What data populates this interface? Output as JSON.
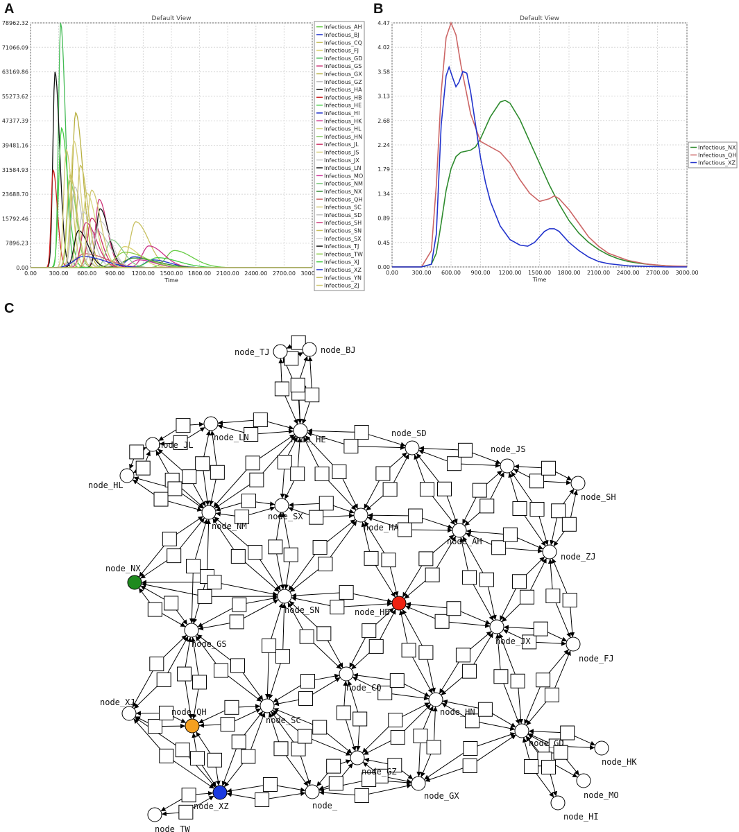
{
  "panels": {
    "a": "A",
    "b": "B",
    "c": "C"
  },
  "chart_data": [
    {
      "type": "line",
      "title": "Default View",
      "xlabel": "Time",
      "ylabel": "",
      "xlim": [
        0,
        3000
      ],
      "ylim": [
        0,
        78962.32
      ],
      "xticks": [
        "0.00",
        "300.00",
        "600.00",
        "900.00",
        "1200.00",
        "1500.00",
        "1800.00",
        "2100.00",
        "2400.00",
        "2700.00",
        "3000.00"
      ],
      "yticks": [
        "0.00",
        "7896.23",
        "15792.46",
        "23688.70",
        "31584.93",
        "39481.16",
        "47377.39",
        "55273.62",
        "63169.86",
        "71066.09",
        "78962.32"
      ],
      "grid": true,
      "legend": "right",
      "series": [
        {
          "name": "Infectious_AH",
          "color": "#66cc44",
          "peak_t": 1530,
          "peak": 5500,
          "width": 170
        },
        {
          "name": "Infectious_BJ",
          "color": "#2233cc",
          "peak_t": 1100,
          "peak": 3500,
          "width": 160
        },
        {
          "name": "Infectious_CQ",
          "color": "#c8c060",
          "peak_t": 1120,
          "peak": 14800,
          "width": 120
        },
        {
          "name": "Infectious_FJ",
          "color": "#d8d070",
          "peak_t": 1000,
          "peak": 6800,
          "width": 140
        },
        {
          "name": "Infectious_GD",
          "color": "#44bb55",
          "peak_t": 320,
          "peak": 78962.32,
          "width": 45
        },
        {
          "name": "Infectious_GS",
          "color": "#cc3377",
          "peak_t": 730,
          "peak": 22000,
          "width": 75
        },
        {
          "name": "Infectious_GX",
          "color": "#b8b040",
          "peak_t": 480,
          "peak": 50000,
          "width": 70
        },
        {
          "name": "Infectious_GZ",
          "color": "#c0c0c0",
          "peak_t": 700,
          "peak": 12000,
          "width": 120
        },
        {
          "name": "Infectious_HA",
          "color": "#111111",
          "peak_t": 260,
          "peak": 63169.86,
          "width": 45
        },
        {
          "name": "Infectious_HB",
          "color": "#cc2222",
          "peak_t": 240,
          "peak": 31584.93,
          "width": 40
        },
        {
          "name": "Infectious_HE",
          "color": "#44cc44",
          "peak_t": 330,
          "peak": 45000,
          "width": 60
        },
        {
          "name": "Infectious_HI",
          "color": "#2233cc",
          "peak_t": 1300,
          "peak": 2500,
          "width": 160
        },
        {
          "name": "Infectious_HK",
          "color": "#cc3388",
          "peak_t": 1260,
          "peak": 7000,
          "width": 140
        },
        {
          "name": "Infectious_HL",
          "color": "#d6d680",
          "peak_t": 600,
          "peak": 24000,
          "width": 85
        },
        {
          "name": "Infectious_HN",
          "color": "#88cc66",
          "peak_t": 420,
          "peak": 28000,
          "width": 60
        },
        {
          "name": "Infectious_JL",
          "color": "#cc3366",
          "peak_t": 650,
          "peak": 16000,
          "width": 85
        },
        {
          "name": "Infectious_JS",
          "color": "#d8d080",
          "peak_t": 460,
          "peak": 41000,
          "width": 65
        },
        {
          "name": "Infectious_JX",
          "color": "#c8c8c8",
          "peak_t": 560,
          "peak": 18000,
          "width": 90
        },
        {
          "name": "Infectious_LN",
          "color": "#111111",
          "peak_t": 740,
          "peak": 19000,
          "width": 80
        },
        {
          "name": "Infectious_MO",
          "color": "#cc3399",
          "peak_t": 1150,
          "peak": 2500,
          "width": 150
        },
        {
          "name": "Infectious_NM",
          "color": "#88cc88",
          "peak_t": 860,
          "peak": 9000,
          "width": 110
        },
        {
          "name": "Infectious_NX",
          "color": "#338833",
          "peak_t": 1100,
          "peak": 3100,
          "width": 220
        },
        {
          "name": "Infectious_QH",
          "color": "#cc6666",
          "peak_t": 580,
          "peak": 4500,
          "width": 200
        },
        {
          "name": "Infectious_SC",
          "color": "#d0c870",
          "peak_t": 380,
          "peak": 38000,
          "width": 55
        },
        {
          "name": "Infectious_SD",
          "color": "#c0c0c0",
          "peak_t": 470,
          "peak": 26000,
          "width": 70
        },
        {
          "name": "Infectious_SH",
          "color": "#cc3377",
          "peak_t": 590,
          "peak": 14500,
          "width": 100
        },
        {
          "name": "Infectious_SN",
          "color": "#c8c060",
          "peak_t": 530,
          "peak": 33000,
          "width": 70
        },
        {
          "name": "Infectious_SX",
          "color": "#d0d0d0",
          "peak_t": 740,
          "peak": 15000,
          "width": 100
        },
        {
          "name": "Infectious_TJ",
          "color": "#111111",
          "peak_t": 510,
          "peak": 12000,
          "width": 90
        },
        {
          "name": "Infectious_TW",
          "color": "#88cc44",
          "peak_t": 1000,
          "peak": 5000,
          "width": 200
        },
        {
          "name": "Infectious_XJ",
          "color": "#44cc44",
          "peak_t": 1350,
          "peak": 3200,
          "width": 200
        },
        {
          "name": "Infectious_XZ",
          "color": "#2233cc",
          "peak_t": 560,
          "peak": 3600,
          "width": 200
        },
        {
          "name": "Infectious_YN",
          "color": "#c8c060",
          "peak_t": 420,
          "peak": 30000,
          "width": 65
        },
        {
          "name": "Infectious_ZJ",
          "color": "#d0c870",
          "peak_t": 650,
          "peak": 25000,
          "width": 85
        }
      ]
    },
    {
      "type": "line",
      "title": "Default View",
      "xlabel": "Time",
      "ylabel": "",
      "xlim": [
        0,
        3000
      ],
      "ylim": [
        0,
        4.47
      ],
      "xticks": [
        "0.00",
        "300.00",
        "600.00",
        "900.00",
        "1200.00",
        "1500.00",
        "1800.00",
        "2100.00",
        "2400.00",
        "2700.00",
        "3000.00"
      ],
      "yticks": [
        "0.00",
        "0.45",
        "0.89",
        "1.34",
        "1.79",
        "2.24",
        "2.68",
        "3.13",
        "3.58",
        "4.02",
        "4.47"
      ],
      "grid": true,
      "legend": "right",
      "series": [
        {
          "name": "Infectious_NX",
          "color": "#2e8b2e",
          "x": [
            0,
            300,
            400,
            450,
            500,
            550,
            600,
            650,
            700,
            750,
            800,
            850,
            900,
            1000,
            1100,
            1150,
            1200,
            1300,
            1400,
            1500,
            1600,
            1700,
            1800,
            1900,
            2000,
            2100,
            2200,
            2300,
            2400,
            2500,
            2600,
            2700,
            2800,
            2900,
            3000
          ],
          "y": [
            0,
            0,
            0.05,
            0.25,
            0.8,
            1.4,
            1.8,
            2.02,
            2.1,
            2.12,
            2.14,
            2.2,
            2.35,
            2.75,
            3.02,
            3.05,
            3.0,
            2.7,
            2.3,
            1.9,
            1.5,
            1.15,
            0.85,
            0.62,
            0.45,
            0.32,
            0.22,
            0.15,
            0.1,
            0.07,
            0.05,
            0.03,
            0.02,
            0.01,
            0.01
          ]
        },
        {
          "name": "Infectious_QH",
          "color": "#cc6666",
          "x": [
            0,
            300,
            400,
            450,
            500,
            550,
            600,
            650,
            700,
            800,
            900,
            1000,
            1100,
            1200,
            1300,
            1400,
            1500,
            1600,
            1650,
            1700,
            1800,
            1900,
            2000,
            2100,
            2200,
            2400,
            2600,
            2800,
            3000
          ],
          "y": [
            0,
            0,
            0.3,
            1.5,
            3.2,
            4.2,
            4.47,
            4.25,
            3.7,
            2.8,
            2.3,
            2.2,
            2.1,
            1.9,
            1.6,
            1.35,
            1.2,
            1.25,
            1.3,
            1.25,
            1.05,
            0.8,
            0.55,
            0.38,
            0.25,
            0.12,
            0.05,
            0.02,
            0.01
          ]
        },
        {
          "name": "Infectious_XZ",
          "color": "#2233cc",
          "x": [
            0,
            300,
            400,
            450,
            500,
            550,
            580,
            620,
            650,
            680,
            720,
            760,
            800,
            850,
            900,
            950,
            1000,
            1100,
            1200,
            1300,
            1380,
            1450,
            1500,
            1550,
            1600,
            1650,
            1700,
            1750,
            1800,
            1900,
            2000,
            2100,
            2200,
            2400,
            2600,
            2800,
            3000
          ],
          "y": [
            0,
            0,
            0.05,
            0.6,
            2.6,
            3.5,
            3.66,
            3.45,
            3.3,
            3.38,
            3.58,
            3.55,
            3.2,
            2.6,
            2.0,
            1.55,
            1.2,
            0.75,
            0.5,
            0.4,
            0.38,
            0.45,
            0.55,
            0.65,
            0.7,
            0.7,
            0.65,
            0.55,
            0.45,
            0.3,
            0.18,
            0.1,
            0.06,
            0.02,
            0.01,
            0.0,
            0.0
          ]
        }
      ]
    }
  ],
  "network": {
    "nodes": [
      {
        "id": "TJ",
        "label": "node_TJ",
        "color": "#ffffff"
      },
      {
        "id": "BJ",
        "label": "node_BJ",
        "color": "#ffffff"
      },
      {
        "id": "LN",
        "label": "node_LN",
        "color": "#ffffff"
      },
      {
        "id": "HE",
        "label": "node_HE",
        "color": "#ffffff"
      },
      {
        "id": "JL",
        "label": "node_JL",
        "color": "#ffffff"
      },
      {
        "id": "SD",
        "label": "node_SD",
        "color": "#ffffff"
      },
      {
        "id": "JS",
        "label": "node_JS",
        "color": "#ffffff"
      },
      {
        "id": "HL",
        "label": "node_HL",
        "color": "#ffffff"
      },
      {
        "id": "SH",
        "label": "node_SH",
        "color": "#ffffff"
      },
      {
        "id": "NM",
        "label": "node_NM",
        "color": "#ffffff"
      },
      {
        "id": "SX",
        "label": "node_SX",
        "color": "#ffffff"
      },
      {
        "id": "HA",
        "label": "node_HA",
        "color": "#ffffff"
      },
      {
        "id": "AH",
        "label": "node_AH",
        "color": "#ffffff"
      },
      {
        "id": "ZJ",
        "label": "node_ZJ",
        "color": "#ffffff"
      },
      {
        "id": "NX",
        "label": "node_NX",
        "color": "#1f8a1f"
      },
      {
        "id": "SN",
        "label": "node_SN",
        "color": "#ffffff"
      },
      {
        "id": "HB",
        "label": "node_HB",
        "color": "#ee2211"
      },
      {
        "id": "GS",
        "label": "node_GS",
        "color": "#ffffff"
      },
      {
        "id": "JX",
        "label": "node_JX",
        "color": "#ffffff"
      },
      {
        "id": "FJ",
        "label": "node_FJ",
        "color": "#ffffff"
      },
      {
        "id": "CQ",
        "label": "node_CQ",
        "color": "#ffffff"
      },
      {
        "id": "XJ",
        "label": "node_XJ",
        "color": "#ffffff"
      },
      {
        "id": "QH",
        "label": "node_QH",
        "color": "#f5a020"
      },
      {
        "id": "SC",
        "label": "node_SC",
        "color": "#ffffff"
      },
      {
        "id": "HN",
        "label": "node_HN",
        "color": "#ffffff"
      },
      {
        "id": "GD",
        "label": "node_GD",
        "color": "#ffffff"
      },
      {
        "id": "HK",
        "label": "node_HK",
        "color": "#ffffff"
      },
      {
        "id": "GZ",
        "label": "node_GZ",
        "color": "#ffffff"
      },
      {
        "id": "MO",
        "label": "node_MO",
        "color": "#ffffff"
      },
      {
        "id": "XZ",
        "label": "node_XZ",
        "color": "#1a3ae0"
      },
      {
        "id": "GX",
        "label": "node_GX",
        "color": "#ffffff"
      },
      {
        "id": "YN",
        "label": "node_",
        "color": "#ffffff"
      },
      {
        "id": "HI",
        "label": "node_HI",
        "color": "#ffffff"
      },
      {
        "id": "TW",
        "label": "node_TW",
        "color": "#ffffff"
      }
    ],
    "edges": [
      [
        "TJ",
        "BJ"
      ],
      [
        "TJ",
        "HE"
      ],
      [
        "BJ",
        "HE"
      ],
      [
        "LN",
        "HE"
      ],
      [
        "LN",
        "JL"
      ],
      [
        "LN",
        "NM"
      ],
      [
        "JL",
        "HL"
      ],
      [
        "JL",
        "NM"
      ],
      [
        "HL",
        "NM"
      ],
      [
        "HE",
        "NM"
      ],
      [
        "HE",
        "SX"
      ],
      [
        "HE",
        "SD"
      ],
      [
        "HE",
        "HA"
      ],
      [
        "SD",
        "HA"
      ],
      [
        "SD",
        "AH"
      ],
      [
        "SD",
        "JS"
      ],
      [
        "JS",
        "SH"
      ],
      [
        "JS",
        "AH"
      ],
      [
        "JS",
        "ZJ"
      ],
      [
        "SH",
        "ZJ"
      ],
      [
        "NM",
        "SX"
      ],
      [
        "NM",
        "NX"
      ],
      [
        "NM",
        "GS"
      ],
      [
        "NM",
        "SN"
      ],
      [
        "SX",
        "HA"
      ],
      [
        "SX",
        "SN"
      ],
      [
        "HA",
        "AH"
      ],
      [
        "HA",
        "HB"
      ],
      [
        "HA",
        "SN"
      ],
      [
        "AH",
        "ZJ"
      ],
      [
        "AH",
        "HB"
      ],
      [
        "AH",
        "JX"
      ],
      [
        "ZJ",
        "JX"
      ],
      [
        "ZJ",
        "FJ"
      ],
      [
        "NX",
        "SN"
      ],
      [
        "NX",
        "GS"
      ],
      [
        "SN",
        "GS"
      ],
      [
        "SN",
        "HB"
      ],
      [
        "SN",
        "SC"
      ],
      [
        "SN",
        "CQ"
      ],
      [
        "HB",
        "JX"
      ],
      [
        "HB",
        "CQ"
      ],
      [
        "HB",
        "HN"
      ],
      [
        "JX",
        "FJ"
      ],
      [
        "JX",
        "HN"
      ],
      [
        "JX",
        "GD"
      ],
      [
        "FJ",
        "GD"
      ],
      [
        "GS",
        "XJ"
      ],
      [
        "GS",
        "QH"
      ],
      [
        "GS",
        "SC"
      ],
      [
        "XJ",
        "QH"
      ],
      [
        "XJ",
        "XZ"
      ],
      [
        "QH",
        "XZ"
      ],
      [
        "QH",
        "SC"
      ],
      [
        "SC",
        "CQ"
      ],
      [
        "SC",
        "XZ"
      ],
      [
        "SC",
        "YN"
      ],
      [
        "SC",
        "GZ"
      ],
      [
        "CQ",
        "HN"
      ],
      [
        "CQ",
        "GZ"
      ],
      [
        "HN",
        "GD"
      ],
      [
        "HN",
        "GZ"
      ],
      [
        "HN",
        "GX"
      ],
      [
        "GD",
        "GX"
      ],
      [
        "GD",
        "HK"
      ],
      [
        "GD",
        "MO"
      ],
      [
        "GD",
        "HI"
      ],
      [
        "GZ",
        "GX"
      ],
      [
        "GZ",
        "YN"
      ],
      [
        "YN",
        "XZ"
      ],
      [
        "YN",
        "GX"
      ],
      [
        "XZ",
        "TW"
      ]
    ]
  }
}
